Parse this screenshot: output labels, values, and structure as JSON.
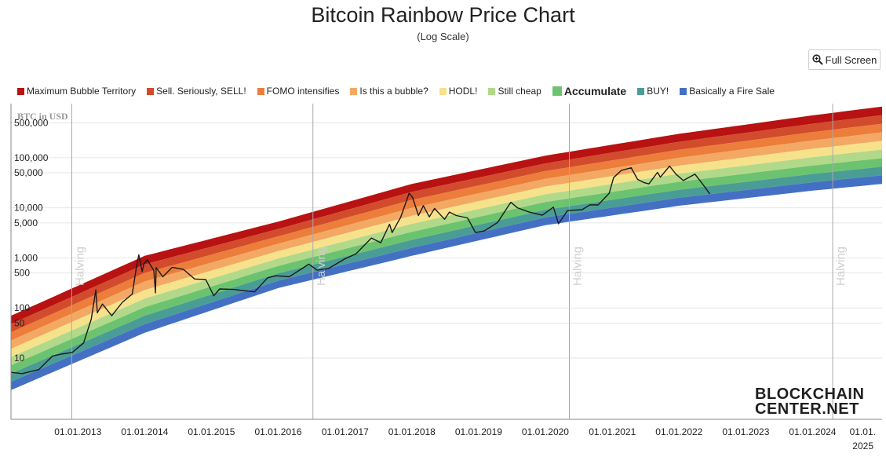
{
  "chart_data": {
    "type": "line",
    "title": "Bitcoin Rainbow Price Chart",
    "subtitle": "(Log Scale)",
    "ylabel": "BTC in USD",
    "y_scale": "log",
    "ylim": [
      0.6,
      1200000
    ],
    "xlim": [
      "2012-01-01",
      "2025-01-15"
    ],
    "grid": true,
    "legend_position": "top-left",
    "y_ticks": [
      {
        "value": 10,
        "label": "10"
      },
      {
        "value": 50,
        "label": "50"
      },
      {
        "value": 100,
        "label": "100"
      },
      {
        "value": 500,
        "label": "500"
      },
      {
        "value": 1000,
        "label": "1,000"
      },
      {
        "value": 5000,
        "label": "5,000"
      },
      {
        "value": 10000,
        "label": "10,000"
      },
      {
        "value": 50000,
        "label": "50,000"
      },
      {
        "value": 100000,
        "label": "100,000"
      },
      {
        "value": 500000,
        "label": "500,000"
      }
    ],
    "x_ticks": [
      {
        "date": "2013-01-01",
        "label": "01.01.2013"
      },
      {
        "date": "2014-01-01",
        "label": "01.01.2014"
      },
      {
        "date": "2015-01-01",
        "label": "01.01.2015"
      },
      {
        "date": "2016-01-01",
        "label": "01.01.2016"
      },
      {
        "date": "2017-01-01",
        "label": "01.01.2017"
      },
      {
        "date": "2018-01-01",
        "label": "01.01.2018"
      },
      {
        "date": "2019-01-01",
        "label": "01.01.2019"
      },
      {
        "date": "2020-01-01",
        "label": "01.01.2020"
      },
      {
        "date": "2021-01-01",
        "label": "01.01.2021"
      },
      {
        "date": "2022-01-01",
        "label": "01.01.2022"
      },
      {
        "date": "2023-01-01",
        "label": "01.01.2023"
      },
      {
        "date": "2024-01-01",
        "label": "01.01.2024"
      },
      {
        "date": "2025-01-01",
        "label": "01.01. 2025"
      }
    ],
    "halvings": [
      {
        "date": "2012-11-28",
        "label": "Halving"
      },
      {
        "date": "2016-07-09",
        "label": "Halving"
      },
      {
        "date": "2020-05-11",
        "label": "Halving"
      },
      {
        "date": "2024-04-20",
        "label": "Halving"
      }
    ],
    "bands": [
      {
        "name": "Maximum Bubble Territory",
        "color": "#b81212"
      },
      {
        "name": "Sell. Seriously, SELL!",
        "color": "#d24b2c"
      },
      {
        "name": "FOMO intensifies",
        "color": "#ec7d3b"
      },
      {
        "name": "Is this a bubble?",
        "color": "#f3a963"
      },
      {
        "name": "HODL!",
        "color": "#f7e28c"
      },
      {
        "name": "Still cheap",
        "color": "#b2d98a"
      },
      {
        "name": "Accumulate",
        "color": "#6cc36f",
        "emphasized": true
      },
      {
        "name": "BUY!",
        "color": "#4a9d94"
      },
      {
        "name": "Basically a Fire Sale",
        "color": "#4470c4"
      }
    ],
    "band_boundaries": [
      {
        "date": "2012-01-01",
        "upper": 70,
        "lower": 2.3
      },
      {
        "date": "2014-01-01",
        "upper": 1100,
        "lower": 32
      },
      {
        "date": "2016-01-01",
        "upper": 5300,
        "lower": 250
      },
      {
        "date": "2018-01-01",
        "upper": 30000,
        "lower": 1100
      },
      {
        "date": "2020-01-01",
        "upper": 110000,
        "lower": 4500
      },
      {
        "date": "2022-01-01",
        "upper": 300000,
        "lower": 11000
      },
      {
        "date": "2024-01-01",
        "upper": 700000,
        "lower": 22000
      },
      {
        "date": "2025-01-15",
        "upper": 1050000,
        "lower": 30000
      }
    ],
    "series": [
      {
        "name": "BTC price",
        "color": "#1a1a1a",
        "points": [
          {
            "date": "2012-01-01",
            "value": 5.2
          },
          {
            "date": "2012-03-01",
            "value": 4.9
          },
          {
            "date": "2012-06-01",
            "value": 5.9
          },
          {
            "date": "2012-08-15",
            "value": 11
          },
          {
            "date": "2012-10-01",
            "value": 12
          },
          {
            "date": "2012-12-01",
            "value": 13
          },
          {
            "date": "2013-02-01",
            "value": 20
          },
          {
            "date": "2013-03-15",
            "value": 60
          },
          {
            "date": "2013-04-09",
            "value": 230
          },
          {
            "date": "2013-04-17",
            "value": 80
          },
          {
            "date": "2013-05-15",
            "value": 120
          },
          {
            "date": "2013-07-05",
            "value": 70
          },
          {
            "date": "2013-09-01",
            "value": 130
          },
          {
            "date": "2013-10-25",
            "value": 190
          },
          {
            "date": "2013-11-18",
            "value": 700
          },
          {
            "date": "2013-11-30",
            "value": 1150
          },
          {
            "date": "2013-12-18",
            "value": 530
          },
          {
            "date": "2013-12-28",
            "value": 760
          },
          {
            "date": "2014-01-15",
            "value": 920
          },
          {
            "date": "2014-02-20",
            "value": 560
          },
          {
            "date": "2014-03-01",
            "value": 200
          },
          {
            "date": "2014-03-05",
            "value": 640
          },
          {
            "date": "2014-04-10",
            "value": 420
          },
          {
            "date": "2014-06-01",
            "value": 650
          },
          {
            "date": "2014-08-01",
            "value": 590
          },
          {
            "date": "2014-10-01",
            "value": 380
          },
          {
            "date": "2014-12-01",
            "value": 370
          },
          {
            "date": "2015-01-14",
            "value": 175
          },
          {
            "date": "2015-02-15",
            "value": 240
          },
          {
            "date": "2015-05-01",
            "value": 235
          },
          {
            "date": "2015-08-25",
            "value": 210
          },
          {
            "date": "2015-11-04",
            "value": 400
          },
          {
            "date": "2015-12-20",
            "value": 440
          },
          {
            "date": "2016-03-01",
            "value": 420
          },
          {
            "date": "2016-06-17",
            "value": 750
          },
          {
            "date": "2016-08-01",
            "value": 570
          },
          {
            "date": "2016-10-01",
            "value": 610
          },
          {
            "date": "2016-12-31",
            "value": 960
          },
          {
            "date": "2017-03-01",
            "value": 1200
          },
          {
            "date": "2017-05-25",
            "value": 2500
          },
          {
            "date": "2017-07-15",
            "value": 2000
          },
          {
            "date": "2017-09-01",
            "value": 4700
          },
          {
            "date": "2017-09-15",
            "value": 3200
          },
          {
            "date": "2017-11-01",
            "value": 6500
          },
          {
            "date": "2017-12-17",
            "value": 19500
          },
          {
            "date": "2018-01-05",
            "value": 16000
          },
          {
            "date": "2018-02-06",
            "value": 7000
          },
          {
            "date": "2018-03-05",
            "value": 11000
          },
          {
            "date": "2018-04-06",
            "value": 6600
          },
          {
            "date": "2018-05-05",
            "value": 9700
          },
          {
            "date": "2018-06-29",
            "value": 5900
          },
          {
            "date": "2018-07-25",
            "value": 8200
          },
          {
            "date": "2018-09-01",
            "value": 7000
          },
          {
            "date": "2018-11-01",
            "value": 6300
          },
          {
            "date": "2018-12-15",
            "value": 3200
          },
          {
            "date": "2019-02-01",
            "value": 3450
          },
          {
            "date": "2019-04-15",
            "value": 5100
          },
          {
            "date": "2019-06-26",
            "value": 12900
          },
          {
            "date": "2019-08-01",
            "value": 10000
          },
          {
            "date": "2019-10-01",
            "value": 8300
          },
          {
            "date": "2019-12-15",
            "value": 7100
          },
          {
            "date": "2020-02-14",
            "value": 10300
          },
          {
            "date": "2020-03-13",
            "value": 4800
          },
          {
            "date": "2020-05-01",
            "value": 8800
          },
          {
            "date": "2020-07-20",
            "value": 9200
          },
          {
            "date": "2020-09-01",
            "value": 11500
          },
          {
            "date": "2020-10-15",
            "value": 11400
          },
          {
            "date": "2020-12-15",
            "value": 19500
          },
          {
            "date": "2021-01-08",
            "value": 40000
          },
          {
            "date": "2021-02-20",
            "value": 56000
          },
          {
            "date": "2021-04-14",
            "value": 63000
          },
          {
            "date": "2021-05-19",
            "value": 37000
          },
          {
            "date": "2021-06-22",
            "value": 32000
          },
          {
            "date": "2021-07-20",
            "value": 30000
          },
          {
            "date": "2021-09-05",
            "value": 51000
          },
          {
            "date": "2021-09-21",
            "value": 41000
          },
          {
            "date": "2021-11-10",
            "value": 68000
          },
          {
            "date": "2021-12-15",
            "value": 47000
          },
          {
            "date": "2022-01-24",
            "value": 35000
          },
          {
            "date": "2022-03-29",
            "value": 47000
          },
          {
            "date": "2022-05-12",
            "value": 29000
          },
          {
            "date": "2022-06-18",
            "value": 19000
          }
        ]
      }
    ]
  },
  "controls": {
    "fullscreen_label": "Full Screen"
  },
  "branding": {
    "logo_line1": "BLOCKCHAIN",
    "logo_line2": "CENTER.NET"
  },
  "icons": {
    "zoom": "magnifier-plus-icon"
  }
}
